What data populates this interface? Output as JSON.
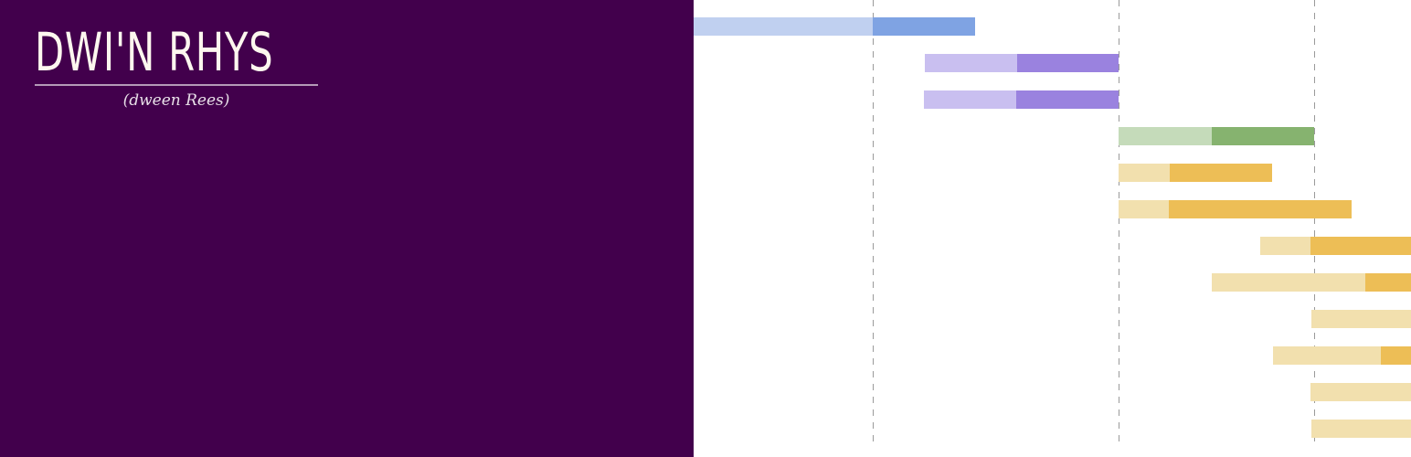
{
  "brand": {
    "name": "DWI'N RHYS",
    "pronunciation": "(dween Rees)"
  },
  "colors": {
    "panel": "#42004c",
    "blue_light": "#c0d0f0",
    "blue_dark": "#7fa3e3",
    "purple_light": "#c9bff0",
    "purple_dark": "#9a82df",
    "green_light": "#c5dbba",
    "green_dark": "#86b36f",
    "gold_light": "#f2e0ae",
    "gold_dark": "#edbe56"
  },
  "chart_data": {
    "type": "bar",
    "orientation": "horizontal",
    "stacked": true,
    "xlim": [
      0,
      785
    ],
    "gridlines": [
      196,
      465,
      679
    ],
    "rows": [
      {
        "start": 0,
        "light": 196,
        "dark": 112,
        "color": "blue"
      },
      {
        "start": 253,
        "light": 101,
        "dark": 111,
        "color": "purple"
      },
      {
        "start": 252,
        "light": 101,
        "dark": 112,
        "color": "purple"
      },
      {
        "start": 465,
        "light": 102,
        "dark": 112,
        "color": "green"
      },
      {
        "start": 465,
        "light": 56,
        "dark": 112,
        "color": "gold"
      },
      {
        "start": 465,
        "light": 55,
        "dark": 200,
        "color": "gold"
      },
      {
        "start": 620,
        "light": 55,
        "dark": 110,
        "color": "gold"
      },
      {
        "start": 567,
        "light": 168,
        "dark": 50,
        "color": "gold"
      },
      {
        "start": 676,
        "light": 109,
        "dark": 0,
        "color": "gold"
      },
      {
        "start": 634,
        "light": 118,
        "dark": 33,
        "color": "gold"
      },
      {
        "start": 675,
        "light": 110,
        "dark": 0,
        "color": "gold"
      },
      {
        "start": 676,
        "light": 109,
        "dark": 0,
        "color": "gold"
      }
    ]
  }
}
